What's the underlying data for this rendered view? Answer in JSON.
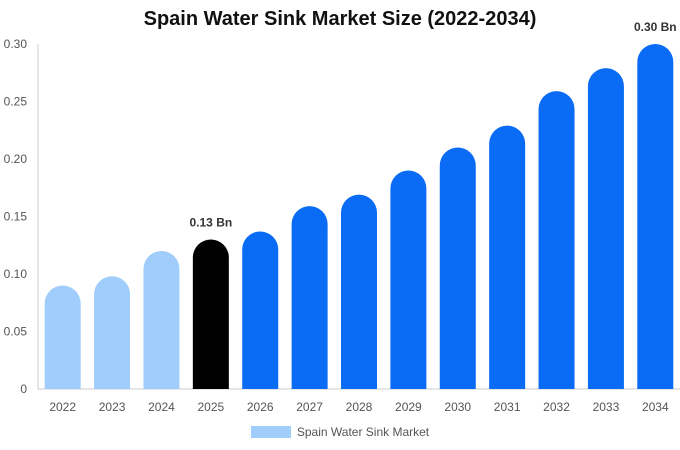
{
  "chart_data": {
    "type": "bar",
    "title": "Spain Water Sink Market Size (2022-2034)",
    "xlabel": "",
    "ylabel": "",
    "categories": [
      "2022",
      "2023",
      "2024",
      "2025",
      "2026",
      "2027",
      "2028",
      "2029",
      "2030",
      "2031",
      "2032",
      "2033",
      "2034"
    ],
    "series": [
      {
        "name": "Spain Water Sink Market",
        "values": [
          0.09,
          0.098,
          0.12,
          0.13,
          0.137,
          0.159,
          0.169,
          0.19,
          0.21,
          0.229,
          0.259,
          0.279,
          0.3
        ]
      }
    ],
    "bar_colors": [
      "#a0cdfb",
      "#a0cdfb",
      "#a0cdfb",
      "#000000",
      "#0a6cf5",
      "#0a6cf5",
      "#0a6cf5",
      "#0a6cf5",
      "#0a6cf5",
      "#0a6cf5",
      "#0a6cf5",
      "#0a6cf5",
      "#0a6cf5"
    ],
    "ylim": [
      0,
      0.3
    ],
    "yticks": [
      "0",
      "0.05",
      "0.10",
      "0.15",
      "0.20",
      "0.25",
      "0.30"
    ],
    "data_labels": [
      {
        "category": "2025",
        "text": "0.13 Bn"
      },
      {
        "category": "2034",
        "text": "0.30 Bn"
      }
    ],
    "legend": {
      "label": "Spain Water Sink Market",
      "color": "#a0cdfb",
      "position": "bottom"
    },
    "grid": false
  }
}
